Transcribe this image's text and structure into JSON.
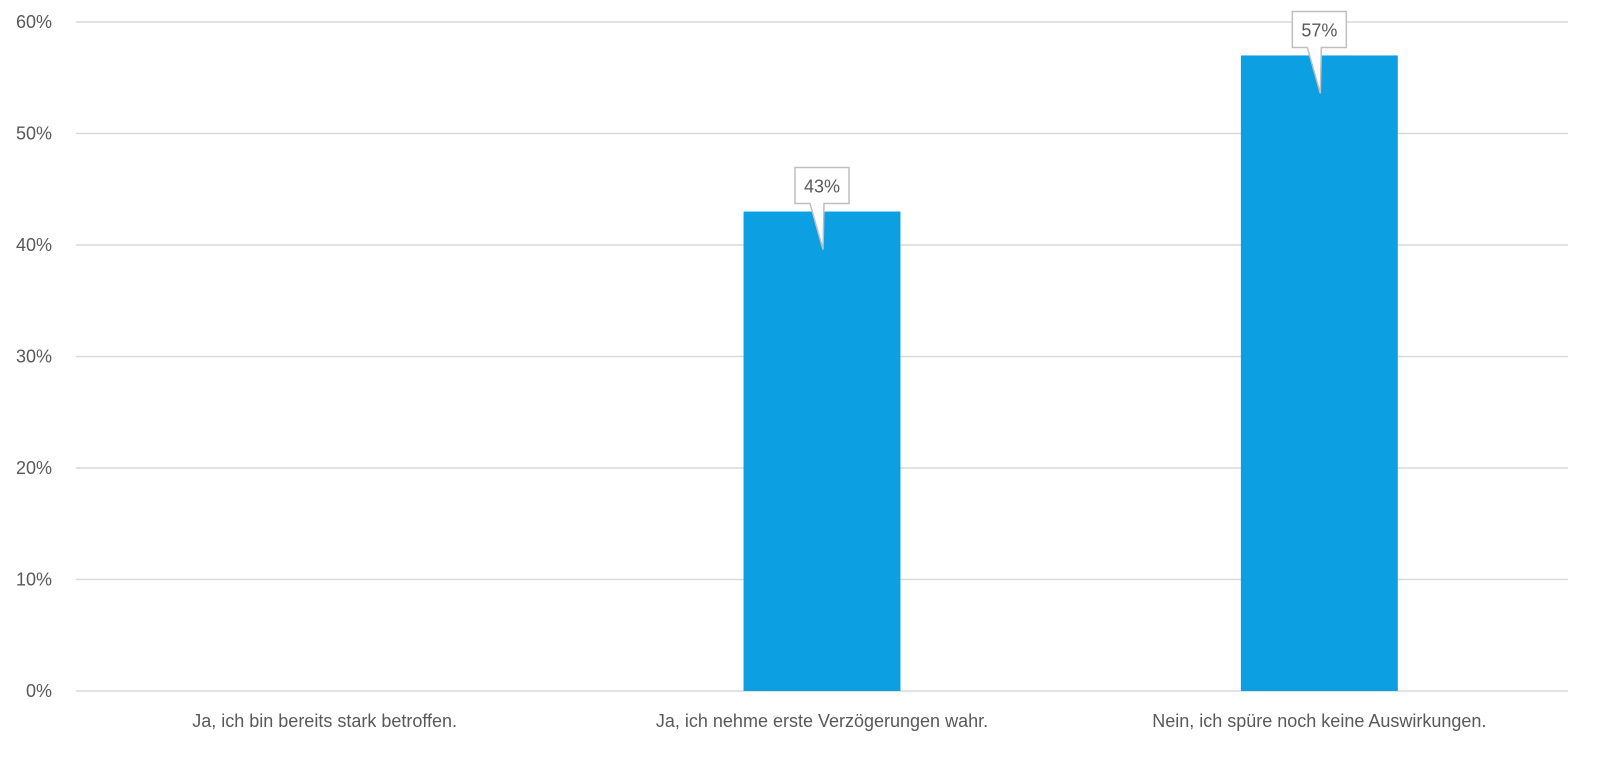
{
  "colors": {
    "bar": "#0ca0e2",
    "grid": "#d9d9d9",
    "text": "#595959",
    "callout_border": "#bfbfbf"
  },
  "chart_data": {
    "type": "bar",
    "title": "",
    "xlabel": "",
    "ylabel": "",
    "categories": [
      "Ja, ich bin bereits stark betroffen.",
      "Ja, ich nehme erste Verzögerungen wahr.",
      "Nein, ich spüre noch keine Auswirkungen."
    ],
    "values": [
      0,
      43,
      57
    ],
    "data_labels": [
      "",
      "43%",
      "57%"
    ],
    "ylim": [
      0,
      60
    ],
    "y_ticks": [
      0,
      10,
      20,
      30,
      40,
      50,
      60
    ],
    "y_tick_labels": [
      "0%",
      "10%",
      "20%",
      "30%",
      "40%",
      "50%",
      "60%"
    ],
    "grid": true,
    "legend": "none"
  }
}
